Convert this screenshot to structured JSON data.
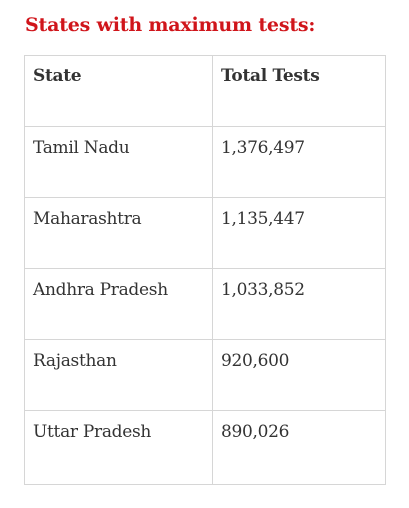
{
  "heading": "States with maximum tests:",
  "table": {
    "headers": [
      "State",
      "Total Tests"
    ],
    "rows": [
      {
        "state": "Tamil Nadu",
        "tests": "1,376,497"
      },
      {
        "state": "Maharashtra",
        "tests": "1,135,447"
      },
      {
        "state": "Andhra Pradesh",
        "tests": "1,033,852"
      },
      {
        "state": "Rajasthan",
        "tests": "920,600"
      },
      {
        "state": "Uttar Pradesh",
        "tests": "890,026"
      }
    ]
  },
  "colors": {
    "heading": "#d0151b",
    "text": "#333333",
    "border": "#d6d6d6"
  }
}
